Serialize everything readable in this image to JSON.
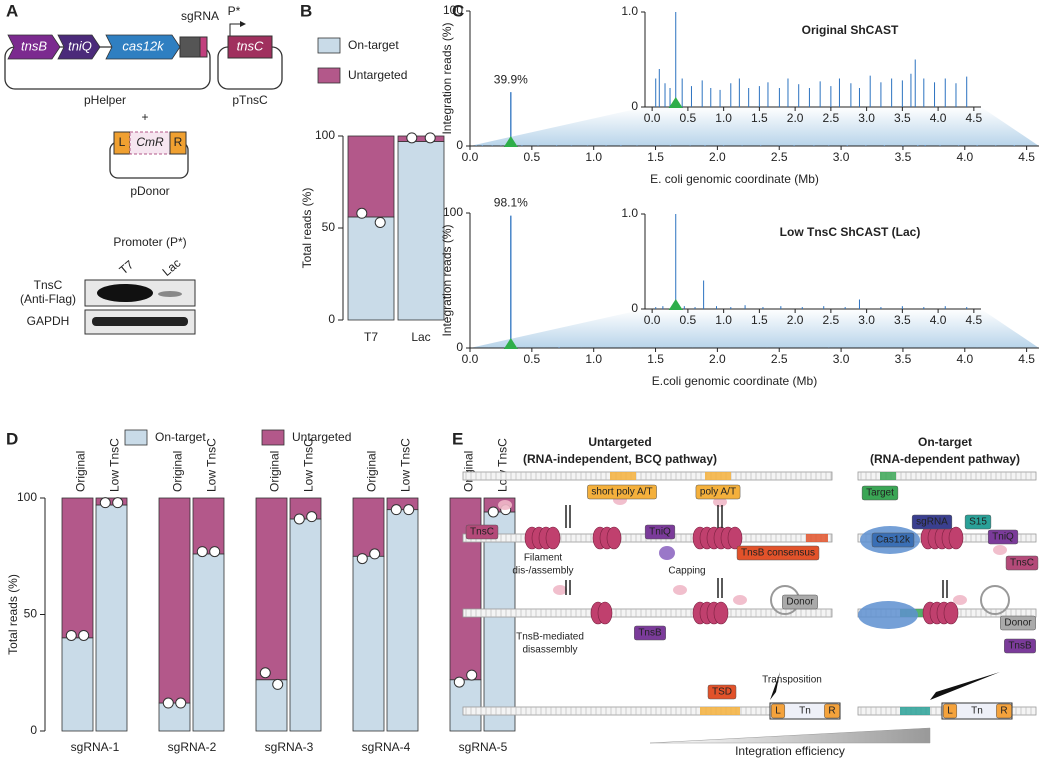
{
  "panel_labels": [
    "A",
    "B",
    "C",
    "D",
    "E"
  ],
  "panel_a": {
    "helper_genes": [
      "tnsB",
      "tniQ",
      "cas12k"
    ],
    "sgrna": "sgRNA",
    "promoter": "P*",
    "tnsc_gene": "tnsC",
    "helper_name": "pHelper",
    "tnsc_name": "pTnsC",
    "plus": "+",
    "donor_parts": [
      "L",
      "CmR",
      "R"
    ],
    "donor_name": "pDonor",
    "blot_title": "Promoter (P*)",
    "blot_lanes": [
      "T7",
      "Lac"
    ],
    "blot_rows": [
      "TnsC",
      "(Anti-Flag)",
      "GAPDH"
    ]
  },
  "chart_data": [
    {
      "type": "stacked_bar",
      "categories": [
        "T7",
        "Lac"
      ],
      "category_colors": [
        "#3344aa",
        "#23a04a"
      ],
      "series": [
        {
          "name": "On-target",
          "color": "#c9dbe8",
          "values": [
            56,
            97
          ]
        },
        {
          "name": "Untargeted",
          "color": "#b3588a",
          "values": [
            44,
            3
          ]
        }
      ],
      "points": [
        [
          58,
          53
        ],
        [
          99,
          99
        ]
      ],
      "ylabel": "Total reads (%)",
      "ylim": [
        0,
        100
      ],
      "yticks": [
        0,
        50,
        100
      ],
      "legend": "top-left"
    },
    {
      "type": "spike",
      "xlabel": "E. coli genomic coordinate (Mb)",
      "ylabel": "Integration reads (%)",
      "xlim": [
        0,
        4.6
      ],
      "ylim": [
        0,
        100
      ],
      "yticks": [
        0,
        100
      ],
      "xticks": [
        {
          "value": 0,
          "label": "0.0"
        },
        0.5,
        {
          "value": 1,
          "label": "1.0"
        },
        1.5,
        {
          "value": 2,
          "label": "2.0"
        },
        2.5,
        {
          "value": 3,
          "label": "3.0"
        },
        3.5,
        {
          "value": 4,
          "label": "4.0"
        },
        4.5
      ],
      "target": 0.33,
      "series": [
        {
          "color": "#2b72c0",
          "x": [
            0.05,
            0.1,
            0.18,
            0.25,
            0.33,
            0.42,
            0.55,
            0.7,
            0.82,
            0.95,
            1.1,
            1.22,
            1.35,
            1.5,
            1.62,
            1.78,
            1.9,
            2.05,
            2.2,
            2.35,
            2.5,
            2.62,
            2.78,
            2.9,
            3.05,
            3.2,
            3.35,
            3.5,
            3.62,
            3.68,
            3.8,
            3.95,
            4.1,
            4.25,
            4.4
          ],
          "values": [
            0.3,
            0.4,
            0.25,
            0.2,
            39.9,
            0.3,
            0.22,
            0.28,
            0.2,
            0.18,
            0.25,
            0.3,
            0.2,
            0.22,
            0.26,
            0.2,
            0.3,
            0.24,
            0.2,
            0.27,
            0.22,
            0.3,
            0.25,
            0.2,
            0.33,
            0.26,
            0.3,
            0.28,
            0.35,
            0.5,
            0.3,
            0.26,
            0.3,
            0.25,
            0.32
          ],
          "value_labels": [
            null,
            null,
            null,
            null,
            "39.9%",
            null,
            null,
            null,
            null,
            null,
            null,
            null,
            null,
            null,
            null,
            null,
            null,
            null,
            null,
            null,
            null,
            null,
            null,
            null,
            null,
            null,
            null,
            null,
            null,
            null,
            null,
            null,
            null,
            null,
            null
          ]
        }
      ],
      "inset": {
        "title": "Original ShCAST",
        "title_color": "#222222",
        "xlim": [
          -0.1,
          4.6
        ],
        "ylim": [
          0,
          1
        ],
        "yticks": [
          0,
          {
            "value": 1,
            "label": "1.0"
          }
        ],
        "xticks": [
          {
            "value": 0,
            "label": "0.0"
          },
          0.5,
          {
            "value": 1,
            "label": "1.0"
          },
          1.5,
          {
            "value": 2,
            "label": "2.0"
          },
          2.5,
          {
            "value": 3,
            "label": "3.0"
          },
          3.5,
          {
            "value": 4,
            "label": "4.0"
          },
          4.5
        ]
      }
    },
    {
      "type": "spike",
      "xlabel": "E.coli genomic coordinate (Mb)",
      "ylabel": "Integration reads (%)",
      "xlim": [
        0,
        4.6
      ],
      "ylim": [
        0,
        100
      ],
      "yticks": [
        0,
        100
      ],
      "xticks": [
        {
          "value": 0,
          "label": "0.0"
        },
        0.5,
        {
          "value": 1,
          "label": "1.0"
        },
        1.5,
        {
          "value": 2,
          "label": "2.0"
        },
        2.5,
        {
          "value": 3,
          "label": "3.0"
        },
        3.5,
        {
          "value": 4,
          "label": "4.0"
        },
        4.5
      ],
      "target": 0.33,
      "series": [
        {
          "color": "#2b72c0",
          "x": [
            0.05,
            0.15,
            0.33,
            0.45,
            0.6,
            0.72,
            0.9,
            1.1,
            1.3,
            1.55,
            1.8,
            2.1,
            2.4,
            2.7,
            2.9,
            3.2,
            3.5,
            3.8,
            4.1,
            4.4
          ],
          "values": [
            0.02,
            0.03,
            98.1,
            0.03,
            0.02,
            0.3,
            0.03,
            0.02,
            0.04,
            0.02,
            0.03,
            0.02,
            0.03,
            0.02,
            0.1,
            0.02,
            0.03,
            0.02,
            0.03,
            0.02
          ],
          "value_labels": [
            null,
            null,
            "98.1%",
            null,
            null,
            null,
            null,
            null,
            null,
            null,
            null,
            null,
            null,
            null,
            null,
            null,
            null,
            null,
            null,
            null
          ]
        }
      ],
      "inset": {
        "title": "Low TnsC ShCAST (Lac)",
        "title_color": "#23a04a",
        "xlim": [
          -0.1,
          4.6
        ],
        "ylim": [
          0,
          1
        ],
        "yticks": [
          0,
          {
            "value": 1,
            "label": "1.0"
          }
        ],
        "xticks": [
          {
            "value": 0,
            "label": "0.0"
          },
          0.5,
          {
            "value": 1,
            "label": "1.0"
          },
          1.5,
          {
            "value": 2,
            "label": "2.0"
          },
          2.5,
          {
            "value": 3,
            "label": "3.0"
          },
          3.5,
          {
            "value": 4,
            "label": "4.0"
          },
          4.5
        ]
      }
    },
    {
      "type": "stacked_bar",
      "categories": [
        "Original",
        "Low TnsC",
        "Original",
        "Low TnsC",
        "Original",
        "Low TnsC",
        "Original",
        "Low TnsC",
        "Original",
        "Low TnsC"
      ],
      "category_colors": [
        "#222222",
        "#23a04a",
        "#222222",
        "#23a04a",
        "#222222",
        "#23a04a",
        "#222222",
        "#23a04a",
        "#222222",
        "#23a04a"
      ],
      "groups": [
        "sgRNA-1",
        "sgRNA-2",
        "sgRNA-3",
        "sgRNA-4",
        "sgRNA-5"
      ],
      "series": [
        {
          "name": "On-target",
          "color": "#c9dbe8",
          "values": [
            40,
            97,
            12,
            76,
            22,
            91,
            75,
            95,
            22,
            94
          ]
        },
        {
          "name": "Untargeted",
          "color": "#b3588a",
          "values": [
            60,
            3,
            88,
            24,
            78,
            9,
            25,
            5,
            78,
            6
          ]
        }
      ],
      "points": [
        [
          41,
          41
        ],
        [
          98,
          98
        ],
        [
          12,
          12
        ],
        [
          77,
          77
        ],
        [
          25,
          20
        ],
        [
          91,
          92
        ],
        [
          74,
          76
        ],
        [
          95,
          95
        ],
        [
          21,
          24
        ],
        [
          94,
          95
        ]
      ],
      "ylabel": "Total reads (%)",
      "ylim": [
        0,
        100
      ],
      "yticks": [
        0,
        50,
        100
      ],
      "legend": "top"
    }
  ],
  "panel_e": {
    "left_title": [
      "Untargeted",
      "(RNA-independent, BCQ pathway)"
    ],
    "right_title": [
      "On-target",
      "(RNA-dependent pathway)"
    ],
    "labels": [
      "short poly A/T",
      "poly A/T",
      "Target",
      "sgRNA",
      "S15",
      "TniQ",
      "Cas12k",
      "TnsC",
      "TnsC",
      "Filament",
      "dis-/assembly",
      "TniQ",
      "Capping",
      "TnsB consensus",
      "TnsB-mediated",
      "disassembly",
      "TnsB",
      "Donor",
      "Donor",
      "TnsB",
      "Transposition",
      "TSD",
      "L",
      "Tn",
      "R",
      "L",
      "Tn",
      "R",
      "Integration efficiency"
    ]
  }
}
